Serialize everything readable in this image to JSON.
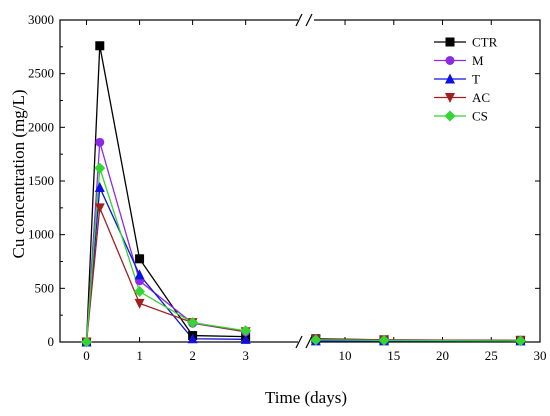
{
  "chart_data": {
    "type": "line",
    "title": "",
    "xlabel": "Time (days)",
    "ylabel": "Cu concentration (mg/L)",
    "ylim": [
      0,
      3000
    ],
    "x_axis_break": {
      "after": 3,
      "before": 7
    },
    "xlim_left": [
      -0.5,
      4.1
    ],
    "xlim_right": [
      6.2,
      30
    ],
    "xticks_left": [
      0,
      1,
      2,
      3
    ],
    "xticks_right": [
      10,
      15,
      20,
      25,
      30
    ],
    "yticks": [
      0,
      500,
      1000,
      1500,
      2000,
      2500,
      3000
    ],
    "x_tick_labels": [
      "0",
      "1",
      "2",
      "3",
      "10",
      "15",
      "20",
      "25",
      "30"
    ],
    "y_tick_labels": [
      "0",
      "500",
      "1000",
      "1500",
      "2000",
      "2500",
      "3000"
    ],
    "grid": false,
    "legend_position": "top-right",
    "series": [
      {
        "name": "CTR",
        "color": "#000000",
        "marker": "square",
        "x": [
          0,
          0.25,
          1,
          2,
          3,
          7,
          14,
          28
        ],
        "y": [
          0,
          2760,
          775,
          60,
          50,
          30,
          20,
          15
        ]
      },
      {
        "name": "M",
        "color": "#8B2BE2",
        "marker": "circle",
        "x": [
          0,
          0.25,
          1,
          2,
          3,
          7,
          14,
          28
        ],
        "y": [
          0,
          1860,
          570,
          175,
          95,
          20,
          15,
          10
        ]
      },
      {
        "name": "T",
        "color": "#1010E0",
        "marker": "triangle-up",
        "x": [
          0,
          0.25,
          1,
          2,
          3,
          7,
          14,
          28
        ],
        "y": [
          0,
          1440,
          625,
          30,
          25,
          10,
          10,
          10
        ]
      },
      {
        "name": "AC",
        "color": "#A02020",
        "marker": "triangle-down",
        "x": [
          0,
          0.25,
          1,
          2,
          3,
          7,
          14,
          28
        ],
        "y": [
          0,
          1250,
          360,
          180,
          95,
          25,
          20,
          15
        ]
      },
      {
        "name": "CS",
        "color": "#33D633",
        "marker": "diamond",
        "x": [
          0,
          0.25,
          1,
          2,
          3,
          7,
          14,
          28
        ],
        "y": [
          0,
          1620,
          470,
          180,
          105,
          20,
          15,
          10
        ]
      }
    ]
  }
}
